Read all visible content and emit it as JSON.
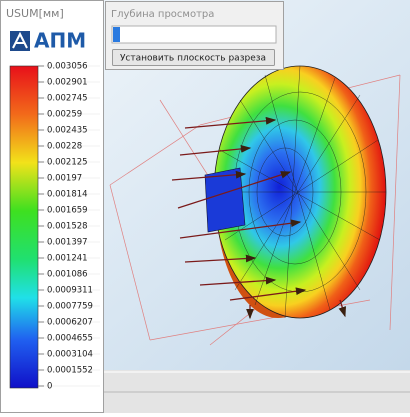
{
  "legend_panel": {
    "title": "USUM[мм]",
    "logo": "АПМ",
    "scale_labels": [
      "0.003056",
      "0.002901",
      "0.002745",
      "0.00259",
      "0.002435",
      "0.00228",
      "0.002125",
      "0.00197",
      "0.001814",
      "0.001659",
      "0.001528",
      "0.001397",
      "0.001241",
      "0.001086",
      "0.0009311",
      "0.0007759",
      "0.0006207",
      "0.0004655",
      "0.0003104",
      "0.0001552",
      "0"
    ]
  },
  "depth_panel": {
    "title": "Глубина просмотра",
    "button": "Установить плоскость разреза"
  }
}
